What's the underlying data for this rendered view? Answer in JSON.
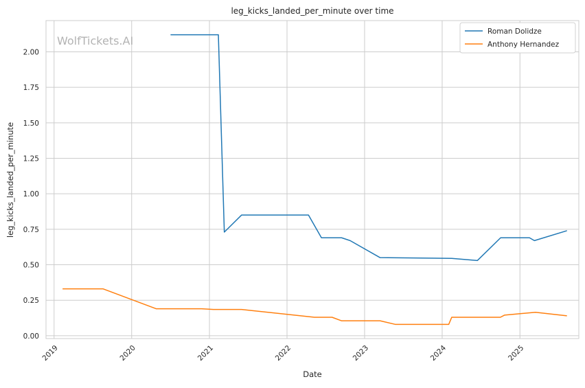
{
  "chart_data": {
    "type": "line",
    "title": "leg_kicks_landed_per_minute over time",
    "xlabel": "Date",
    "ylabel": "leg_kicks_landed_per_minute",
    "watermark": "WolfTickets.AI",
    "x_ticks": [
      "2019",
      "2020",
      "2021",
      "2022",
      "2023",
      "2024",
      "2025"
    ],
    "y_ticks": [
      "0.00",
      "0.25",
      "0.50",
      "0.75",
      "1.00",
      "1.25",
      "1.50",
      "1.75",
      "2.00"
    ],
    "xlim": [
      "2018-11-24",
      "2025-10-05"
    ],
    "ylim": [
      -0.02,
      2.22
    ],
    "grid": true,
    "legend_position": "top-right",
    "series": [
      {
        "name": "Roman Dolidze",
        "color": "#1f77b4",
        "x": [
          "2020-07-02",
          "2021-02-12",
          "2021-03-12",
          "2021-06-01",
          "2022-04-12",
          "2022-06-12",
          "2022-09-15",
          "2022-10-25",
          "2023-03-15",
          "2024-02-15",
          "2024-06-15",
          "2024-10-02",
          "2025-02-15",
          "2025-03-10",
          "2025-08-10"
        ],
        "values": [
          2.12,
          2.12,
          0.73,
          0.85,
          0.85,
          0.69,
          0.69,
          0.67,
          0.55,
          0.545,
          0.53,
          0.69,
          0.69,
          0.67,
          0.74
        ]
      },
      {
        "name": "Anthony Hernandez",
        "color": "#ff7f0e",
        "x": [
          "2019-02-10",
          "2019-08-20",
          "2020-04-25",
          "2020-11-25",
          "2021-01-20",
          "2021-06-01",
          "2022-05-10",
          "2022-08-01",
          "2022-09-15",
          "2023-03-15",
          "2023-05-25",
          "2024-02-01",
          "2024-02-15",
          "2024-10-01",
          "2024-10-20",
          "2025-03-15",
          "2025-08-10"
        ],
        "values": [
          0.33,
          0.33,
          0.19,
          0.19,
          0.185,
          0.185,
          0.13,
          0.13,
          0.105,
          0.105,
          0.08,
          0.08,
          0.13,
          0.13,
          0.145,
          0.165,
          0.14
        ]
      }
    ]
  }
}
